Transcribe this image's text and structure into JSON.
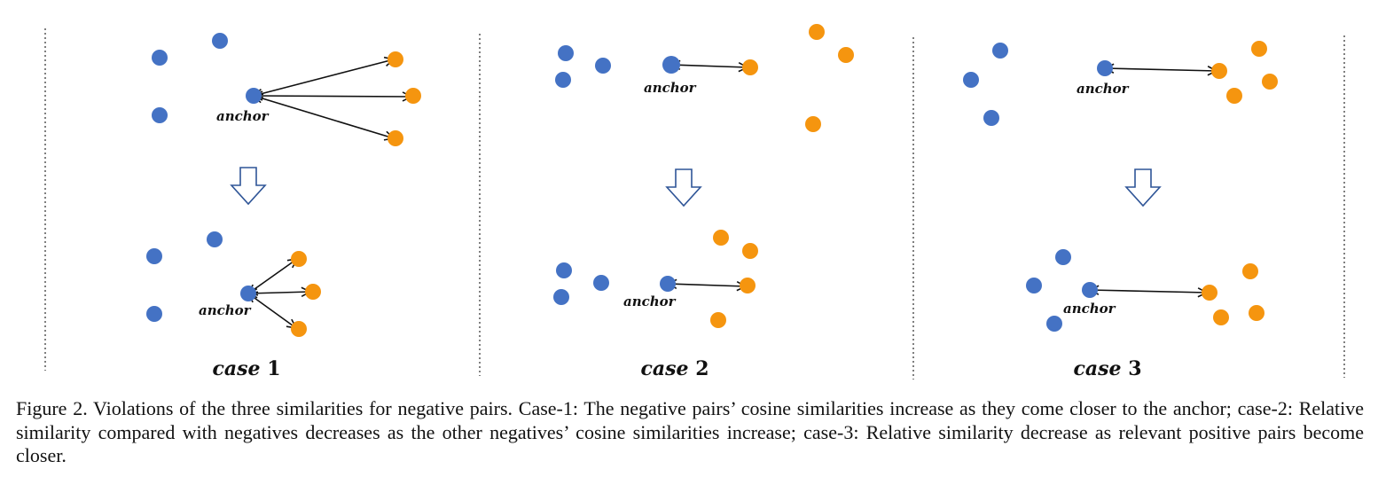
{
  "figure": {
    "cases": [
      {
        "label_word": "case",
        "label_num": "1",
        "anchor_label": "anchor"
      },
      {
        "label_word": "case",
        "label_num": "2",
        "anchor_label": "anchor"
      },
      {
        "label_word": "case",
        "label_num": "3",
        "anchor_label": "anchor"
      }
    ],
    "colors": {
      "positive": "#4472C4",
      "negative": "#F5950F",
      "arrow": "#111111",
      "down_arrow_stroke": "#2F5597",
      "divider": "#555555"
    },
    "icons": [
      "down-arrow-icon"
    ]
  },
  "caption": "Figure 2. Violations of the three similarities for negative pairs. Case-1: The negative pairs’ cosine similarities increase as they come closer to the anchor; case-2: Relative similarity compared with negatives decreases as the other negatives’ cosine similarities increase; case-3: Relative similarity decrease as relevant positive pairs become closer."
}
